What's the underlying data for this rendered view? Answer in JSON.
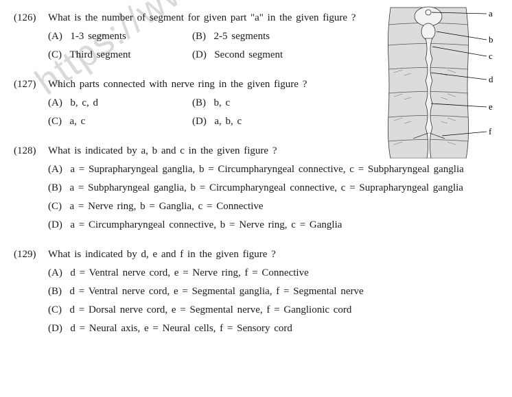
{
  "watermark": "https://www.studies",
  "figure": {
    "labels": [
      "a",
      "b",
      "c",
      "d",
      "e",
      "f"
    ],
    "label_positions_y": [
      14,
      52,
      76,
      110,
      150,
      186
    ],
    "body_fill": "#dcdcdc",
    "body_stroke": "#333333",
    "cord_fill": "#f3f3f3",
    "label_fontsize": 13
  },
  "questions": [
    {
      "num": "(126)",
      "text": "What is the number of segment for given part \"a\" in the given figure ?",
      "layout": "half",
      "constrain": true,
      "options": [
        {
          "label": "(A)",
          "text": "1-3 segments"
        },
        {
          "label": "(B)",
          "text": "2-5 segments"
        },
        {
          "label": "(C)",
          "text": "Third segment"
        },
        {
          "label": "(D)",
          "text": "Second segment"
        }
      ]
    },
    {
      "num": "(127)",
      "text": "Which parts connected with nerve ring in the given figure ?",
      "layout": "half",
      "constrain": true,
      "options": [
        {
          "label": "(A)",
          "text": "b, c, d"
        },
        {
          "label": "(B)",
          "text": "b, c"
        },
        {
          "label": "(C)",
          "text": "a, c"
        },
        {
          "label": "(D)",
          "text": "a, b, c"
        }
      ]
    },
    {
      "num": "(128)",
      "text": "What is indicated by a, b and c in the given figure ?",
      "layout": "full",
      "options": [
        {
          "label": "(A)",
          "text": "a = Suprapharyngeal ganglia, b = Circumpharyngeal connective, c = Subpharyngeal ganglia"
        },
        {
          "label": "(B)",
          "text": "a = Subpharyngeal ganglia, b = Circumpharyngeal connective, c = Suprapharyngeal ganglia"
        },
        {
          "label": "(C)",
          "text": "a = Nerve ring, b = Ganglia, c = Connective"
        },
        {
          "label": "(D)",
          "text": "a = Circumpharyngeal connective, b = Nerve ring, c = Ganglia"
        }
      ]
    },
    {
      "num": "(129)",
      "text": "What is indicated by d, e and f in the given figure ?",
      "layout": "full",
      "options": [
        {
          "label": "(A)",
          "text": "d = Ventral nerve cord, e = Nerve ring, f = Connective"
        },
        {
          "label": "(B)",
          "text": "d = Ventral nerve cord, e = Segmental ganglia, f = Segmental nerve"
        },
        {
          "label": "(C)",
          "text": "d = Dorsal nerve cord, e = Segmental nerve, f = Ganglionic cord"
        },
        {
          "label": "(D)",
          "text": "d = Neural axis, e = Neural cells, f = Sensory cord"
        }
      ]
    }
  ]
}
